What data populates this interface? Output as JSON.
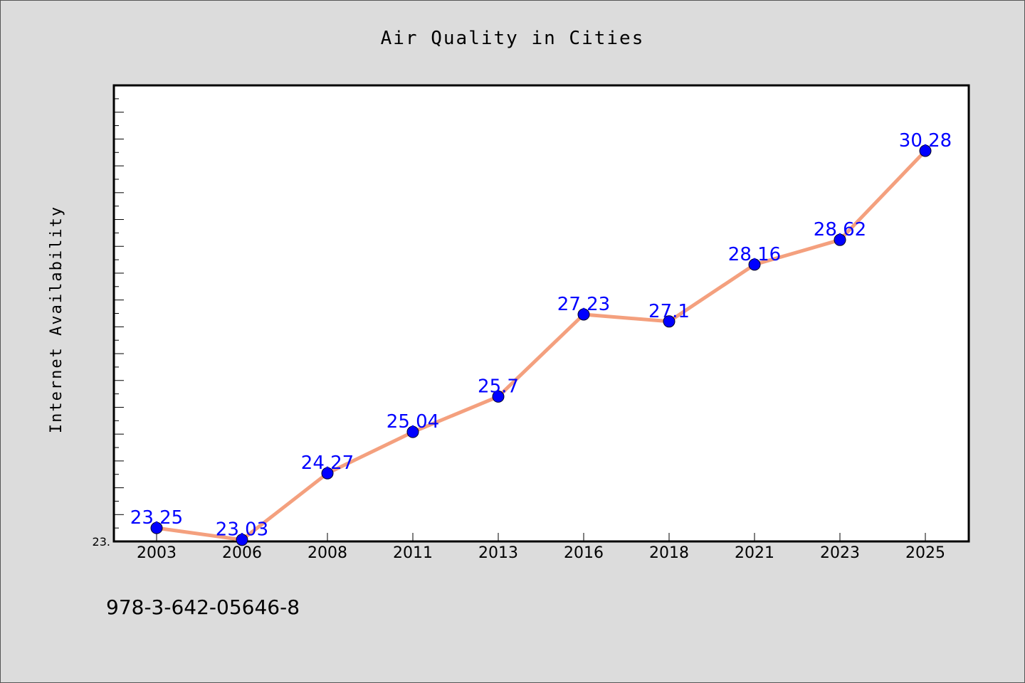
{
  "chart_data": {
    "type": "line",
    "title": "Air Quality in Cities",
    "xlabel": "",
    "ylabel": "Internet Availability",
    "categories": [
      "2003",
      "2006",
      "2008",
      "2011",
      "2013",
      "2016",
      "2018",
      "2021",
      "2023",
      "2025"
    ],
    "values": [
      23.25,
      23.03,
      24.27,
      25.04,
      25.7,
      27.23,
      27.1,
      28.16,
      28.62,
      30.28
    ],
    "data_labels": [
      "23.25",
      "23.03",
      "24.27",
      "25.04",
      "25.7",
      "27.23",
      "27.1",
      "28.16",
      "28.62",
      "30.28"
    ],
    "ylim": [
      23.0,
      31.5
    ],
    "y_min_tick_label": "23.",
    "grid": false,
    "legend": "none",
    "line_color": "#f4a07e",
    "marker_color": "#0000ff"
  },
  "footer": {
    "code": "978-3-642-05646-8"
  }
}
